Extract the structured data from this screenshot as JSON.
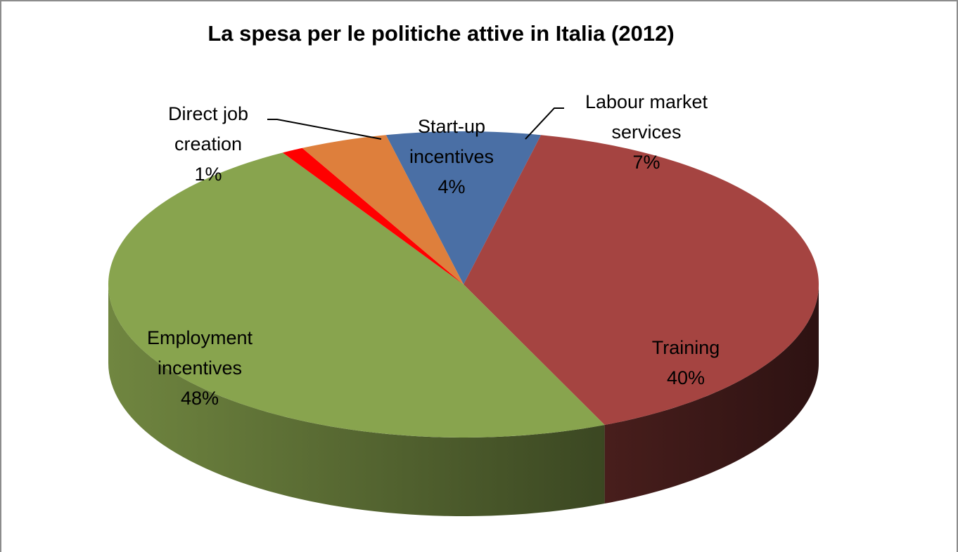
{
  "chart_data": {
    "type": "pie",
    "style": "3d",
    "title": "La spesa per le politiche attive in Italia (2012)",
    "slices": [
      {
        "name": "Labour market services",
        "label_lines": [
          "Labour market",
          "services"
        ],
        "pct_label": "7%",
        "value": 7,
        "color": "#4a6fa5"
      },
      {
        "name": "Training",
        "label_lines": [
          "Training"
        ],
        "pct_label": "40%",
        "value": 40,
        "color": "#a54441"
      },
      {
        "name": "Employment incentives",
        "label_lines": [
          "Employment",
          "incentives"
        ],
        "pct_label": "48%",
        "value": 48,
        "color": "#88a44e"
      },
      {
        "name": "Direct job creation",
        "label_lines": [
          "Direct job",
          "creation"
        ],
        "pct_label": "1%",
        "value": 1,
        "color": "#ff0000"
      },
      {
        "name": "Start-up incentives",
        "label_lines": [
          "Start-up",
          "incentives"
        ],
        "pct_label": "4%",
        "value": 4,
        "color": "#de7f3c"
      }
    ],
    "legend": "none"
  }
}
